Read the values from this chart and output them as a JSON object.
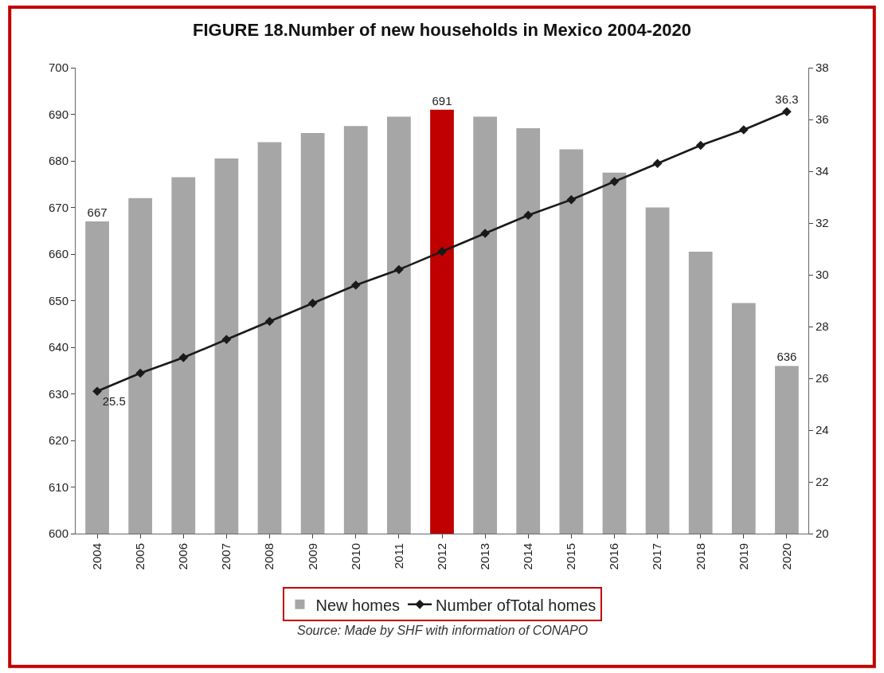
{
  "chart_data": {
    "type": "bar",
    "title": "FIGURE 18.Number of new households in Mexico 2004-2020",
    "categories": [
      "2004",
      "2005",
      "2006",
      "2007",
      "2008",
      "2009",
      "2010",
      "2011",
      "2012",
      "2013",
      "2014",
      "2015",
      "2016",
      "2017",
      "2018",
      "2019",
      "2020"
    ],
    "series": [
      {
        "name": "New homes",
        "color": "#a6a6a6",
        "colors": [
          "#a6a6a6",
          "#a6a6a6",
          "#a6a6a6",
          "#a6a6a6",
          "#a6a6a6",
          "#a6a6a6",
          "#a6a6a6",
          "#a6a6a6",
          "#c00000",
          "#a6a6a6",
          "#a6a6a6",
          "#a6a6a6",
          "#a6a6a6",
          "#a6a6a6",
          "#a6a6a6",
          "#a6a6a6",
          "#a6a6a6"
        ],
        "values": [
          667,
          672,
          676.5,
          680.5,
          684,
          686,
          687.5,
          689.5,
          691,
          689.5,
          687,
          682.5,
          677.5,
          670,
          660.5,
          649.5,
          636
        ],
        "value_labels": [
          "667",
          null,
          null,
          null,
          null,
          null,
          null,
          null,
          "691",
          null,
          null,
          null,
          null,
          null,
          null,
          null,
          "636"
        ]
      },
      {
        "name": "Number ofTotal homes",
        "type": "line",
        "axis": "y2",
        "color": "#1a1a1a",
        "marker": "diamond",
        "line_style": "solid",
        "values": [
          25.5,
          26.2,
          26.8,
          27.5,
          28.2,
          28.9,
          29.6,
          30.2,
          30.9,
          31.6,
          32.3,
          32.9,
          33.6,
          34.3,
          35.0,
          35.6,
          36.3
        ],
        "value_labels": [
          "25.5",
          null,
          null,
          null,
          null,
          null,
          null,
          null,
          null,
          null,
          null,
          null,
          null,
          null,
          null,
          null,
          "36.3"
        ]
      }
    ],
    "ylim": [
      600,
      700
    ],
    "yticks": [
      600,
      610,
      620,
      630,
      640,
      650,
      660,
      670,
      680,
      690,
      700
    ],
    "y2lim": [
      20,
      38
    ],
    "y2ticks": [
      20,
      22,
      24,
      26,
      28,
      30,
      32,
      34,
      36,
      38
    ],
    "grid": false,
    "legend": "bottom",
    "annotations": [
      "Source: Made by SHF with information of CONAPO"
    ]
  }
}
